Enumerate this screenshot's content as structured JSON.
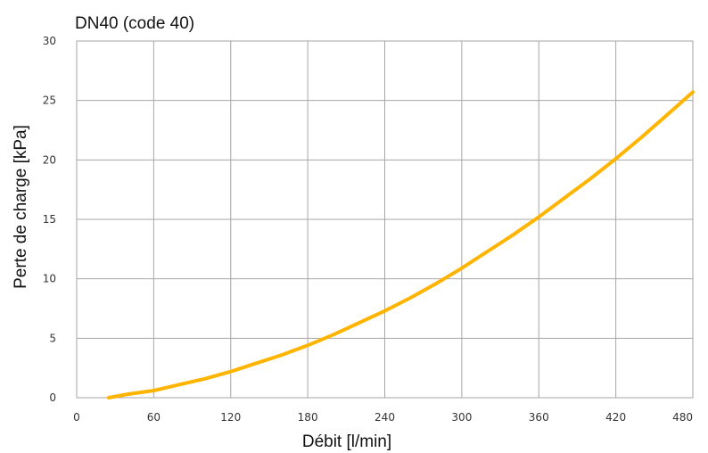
{
  "chart_data": {
    "type": "line",
    "title": "DN40 (code 40)",
    "xlabel": "Débit [l/min]",
    "ylabel": "Perte de charge [kPa]",
    "xlim": [
      0,
      480
    ],
    "ylim": [
      0,
      30
    ],
    "xticks": [
      "0",
      "60",
      "120",
      "180",
      "240",
      "300",
      "360",
      "420",
      "480"
    ],
    "yticks": [
      "0",
      "5",
      "10",
      "15",
      "20",
      "25",
      "30"
    ],
    "grid": true,
    "legend": "none",
    "series": [
      {
        "color": "#FFB400",
        "x": [
          25,
          40,
          60,
          80,
          100,
          120,
          140,
          160,
          180,
          200,
          220,
          240,
          260,
          280,
          300,
          320,
          340,
          360,
          380,
          400,
          420,
          440,
          460,
          480
        ],
        "y": [
          0,
          0.3,
          0.6,
          1.1,
          1.6,
          2.2,
          2.9,
          3.6,
          4.4,
          5.3,
          6.3,
          7.3,
          8.4,
          9.6,
          10.9,
          12.3,
          13.7,
          15.2,
          16.8,
          18.4,
          20.1,
          21.9,
          23.8,
          25.7
        ]
      }
    ]
  }
}
